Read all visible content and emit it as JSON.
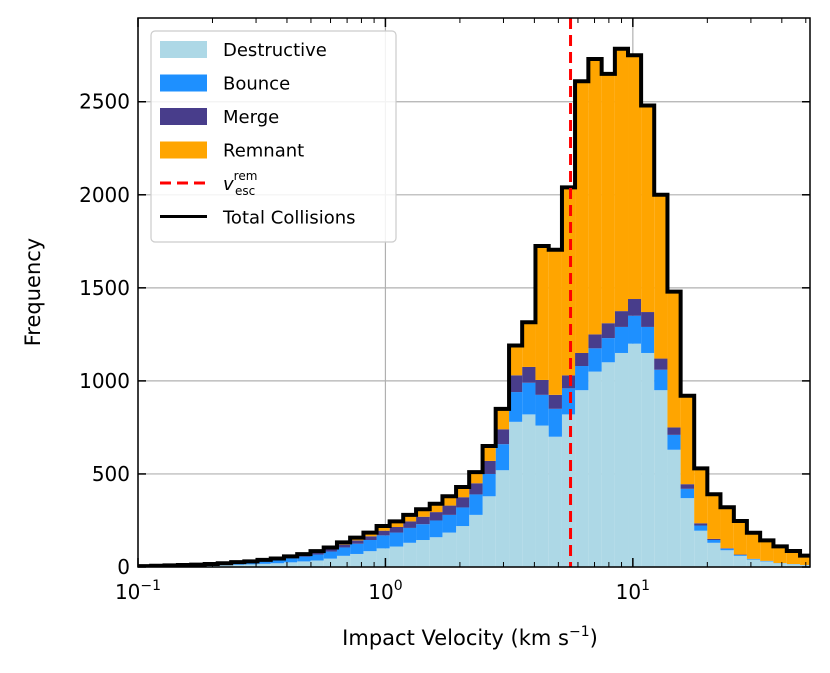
{
  "chart_data": {
    "type": "bar",
    "subtype": "stacked-histogram",
    "xlabel": "Impact Velocity (km s",
    "xlabel_sup": "−1",
    "xlabel_close": ")",
    "ylabel": "Frequency",
    "x_scale": "log",
    "xlim": [
      0.1,
      52
    ],
    "ylim": [
      0,
      2950
    ],
    "grid": true,
    "legend_placement": "top-left",
    "x_ticks": [
      {
        "value": 0.1,
        "base": "10",
        "exp": "−1"
      },
      {
        "value": 1,
        "base": "10",
        "exp": "0"
      },
      {
        "value": 10,
        "base": "10",
        "exp": "1"
      }
    ],
    "y_ticks": [
      0,
      500,
      1000,
      1500,
      2000,
      2500
    ],
    "bin_edges": [
      0.1,
      0.113,
      0.128,
      0.145,
      0.164,
      0.186,
      0.21,
      0.238,
      0.269,
      0.304,
      0.344,
      0.389,
      0.44,
      0.498,
      0.563,
      0.637,
      0.72,
      0.815,
      0.921,
      1.04,
      1.18,
      1.33,
      1.51,
      1.7,
      1.93,
      2.18,
      2.47,
      2.79,
      3.16,
      3.57,
      4.04,
      4.57,
      5.17,
      5.84,
      6.61,
      7.48,
      8.46,
      9.56,
      10.8,
      12.2,
      13.8,
      15.6,
      17.7,
      20.0,
      22.6,
      25.6,
      28.9,
      32.7,
      37.0,
      41.9,
      47.4,
      53.6
    ],
    "series": [
      {
        "name": "Destructive",
        "color": "#add8e6",
        "values": [
          3,
          4,
          5,
          6,
          7,
          9,
          10,
          12,
          14,
          17,
          20,
          25,
          30,
          35,
          45,
          60,
          70,
          85,
          100,
          110,
          130,
          145,
          160,
          185,
          220,
          280,
          380,
          520,
          780,
          820,
          760,
          700,
          820,
          950,
          1050,
          1100,
          1150,
          1200,
          1150,
          950,
          630,
          370,
          195,
          130,
          90,
          60,
          40,
          30,
          20,
          15,
          10
        ]
      },
      {
        "name": "Bounce",
        "color": "#1e90ff",
        "values": [
          2,
          3,
          3,
          4,
          5,
          6,
          8,
          10,
          12,
          15,
          18,
          22,
          26,
          32,
          38,
          45,
          55,
          60,
          70,
          75,
          80,
          85,
          90,
          95,
          100,
          110,
          120,
          140,
          160,
          170,
          165,
          150,
          140,
          130,
          125,
          130,
          140,
          150,
          140,
          110,
          80,
          50,
          28,
          15,
          8,
          5,
          3,
          2,
          1,
          1,
          1
        ]
      },
      {
        "name": "Merge",
        "color": "#483d8b",
        "values": [
          0,
          0,
          1,
          1,
          1,
          1,
          2,
          3,
          3,
          4,
          5,
          6,
          8,
          10,
          12,
          15,
          18,
          20,
          25,
          30,
          35,
          40,
          45,
          50,
          55,
          60,
          70,
          80,
          90,
          85,
          80,
          75,
          70,
          70,
          75,
          80,
          85,
          90,
          80,
          60,
          40,
          25,
          12,
          6,
          3,
          2,
          1,
          1,
          0,
          0,
          0
        ]
      },
      {
        "name": "Remnant",
        "color": "#ffa500",
        "values": [
          0,
          0,
          0,
          0,
          0,
          0,
          0,
          1,
          1,
          2,
          3,
          4,
          5,
          8,
          10,
          12,
          15,
          20,
          25,
          30,
          35,
          40,
          45,
          50,
          55,
          60,
          80,
          110,
          160,
          240,
          720,
          780,
          1010,
          1460,
          1480,
          1340,
          1410,
          1310,
          1110,
          880,
          730,
          475,
          295,
          240,
          220,
          180,
          140,
          110,
          90,
          70,
          50
        ]
      }
    ],
    "vlines": [
      {
        "name": "v_esc^rem",
        "x": 5.6,
        "color": "#ff0000",
        "style": "dashed"
      }
    ],
    "total_series": {
      "name": "Total Collisions",
      "color": "#000000"
    },
    "legend": [
      {
        "label": "Destructive",
        "kind": "patch",
        "color": "#add8e6"
      },
      {
        "label": "Bounce",
        "kind": "patch",
        "color": "#1e90ff"
      },
      {
        "label": "Merge",
        "kind": "patch",
        "color": "#483d8b"
      },
      {
        "label": "Remnant",
        "kind": "patch",
        "color": "#ffa500"
      },
      {
        "label": "v",
        "sup": "rem",
        "sub": "esc",
        "kind": "dashed-line",
        "color": "#ff0000"
      },
      {
        "label": "Total Collisions",
        "kind": "line",
        "color": "#000000"
      }
    ]
  }
}
